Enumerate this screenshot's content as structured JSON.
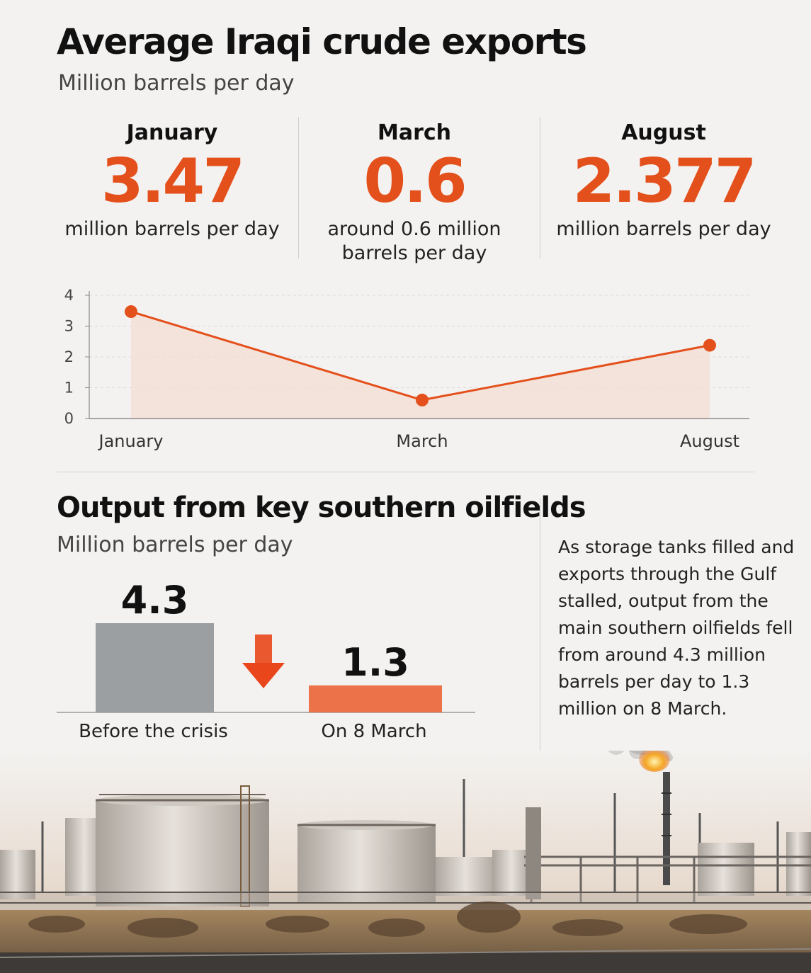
{
  "title": "Average Iraqi crude exports",
  "subtitle": "Million barrels per day",
  "stats": [
    {
      "month": "January",
      "value": "3.47",
      "note": "million barrels per day"
    },
    {
      "month": "March",
      "value": "0.6",
      "note_line1": "around 0.6 million",
      "note_line2": "barrels per day"
    },
    {
      "month": "August",
      "value": "2.377",
      "note": "million barrels per day"
    }
  ],
  "section2": {
    "title": "Output from key southern oilfields",
    "subtitle": "Million barrels per day",
    "note": "As storage tanks filled and exports through the Gulf stalled, output from the main southern oilfields fell from around 4.3 million barrels per day to 1.3 million on 8 March."
  },
  "colors": {
    "accent": "#e4501c",
    "area_fill": "#f4ddd3",
    "bar_before": "#9c9fa1",
    "bar_after": "#ec7249",
    "arrow": "#e9471b"
  },
  "chart_data": [
    {
      "type": "line",
      "categories": [
        "January",
        "March",
        "August"
      ],
      "series": [
        {
          "values": [
            3.47,
            0.6,
            2.377
          ]
        }
      ],
      "yticks": [
        "0",
        "1",
        "2",
        "3",
        "4"
      ],
      "ylim": [
        0,
        4
      ],
      "grid": true,
      "area_fill": true
    },
    {
      "type": "bar",
      "categories": [
        "Before the crisis",
        "On 8 March"
      ],
      "values": [
        4.3,
        1.3
      ],
      "value_labels": [
        "4.3",
        "1.3"
      ],
      "ylim": [
        0,
        4.3
      ],
      "decoration": "down-arrow"
    }
  ]
}
